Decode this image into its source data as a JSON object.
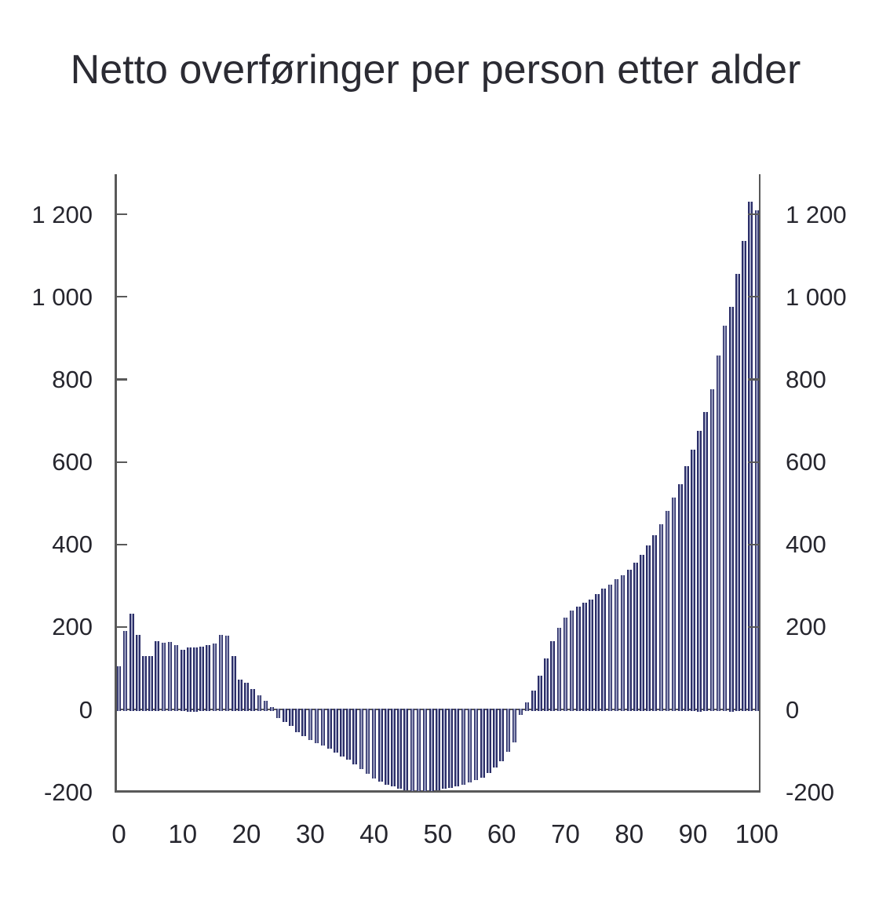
{
  "title": "Netto overføringer per person etter alder",
  "chart_data": {
    "type": "bar",
    "title": "Netto overføringer per person etter alder",
    "xlabel": "",
    "ylabel": "",
    "x": [
      0,
      1,
      2,
      3,
      4,
      5,
      6,
      7,
      8,
      9,
      10,
      11,
      12,
      13,
      14,
      15,
      16,
      17,
      18,
      19,
      20,
      21,
      22,
      23,
      24,
      25,
      26,
      27,
      28,
      29,
      30,
      31,
      32,
      33,
      34,
      35,
      36,
      37,
      38,
      39,
      40,
      41,
      42,
      43,
      44,
      45,
      46,
      47,
      48,
      49,
      50,
      51,
      52,
      53,
      54,
      55,
      56,
      57,
      58,
      59,
      60,
      61,
      62,
      63,
      64,
      65,
      66,
      67,
      68,
      69,
      70,
      71,
      72,
      73,
      74,
      75,
      76,
      77,
      78,
      79,
      80,
      81,
      82,
      83,
      84,
      85,
      86,
      87,
      88,
      89,
      90,
      91,
      92,
      93,
      94,
      95,
      96,
      97,
      98,
      99,
      100
    ],
    "values": [
      105,
      190,
      232,
      180,
      130,
      130,
      165,
      162,
      163,
      155,
      145,
      150,
      150,
      152,
      155,
      160,
      180,
      178,
      130,
      72,
      65,
      50,
      35,
      20,
      5,
      -20,
      -30,
      -40,
      -55,
      -65,
      -75,
      -82,
      -88,
      -95,
      -105,
      -115,
      -122,
      -133,
      -145,
      -155,
      -168,
      -175,
      -182,
      -187,
      -192,
      -195,
      -197,
      -198,
      -198,
      -197,
      -195,
      -193,
      -190,
      -187,
      -182,
      -177,
      -172,
      -166,
      -154,
      -141,
      -125,
      -102,
      -79,
      -14,
      18,
      46,
      82,
      123,
      166,
      198,
      223,
      239,
      250,
      258,
      267,
      280,
      293,
      303,
      315,
      326,
      338,
      356,
      374,
      398,
      422,
      448,
      481,
      514,
      545,
      590,
      630,
      675,
      720,
      776,
      858,
      930,
      975,
      1055,
      1135,
      1230,
      1210
    ],
    "y_ticks": [
      {
        "value": 1200,
        "label": "1 200"
      },
      {
        "value": 1000,
        "label": "1 000"
      },
      {
        "value": 800,
        "label": "800"
      },
      {
        "value": 600,
        "label": "600"
      },
      {
        "value": 400,
        "label": "400"
      },
      {
        "value": 200,
        "label": "200"
      },
      {
        "value": 0,
        "label": "0"
      },
      {
        "value": -200,
        "label": "-200"
      }
    ],
    "x_ticks": [
      {
        "value": 0,
        "label": "0"
      },
      {
        "value": 10,
        "label": "10"
      },
      {
        "value": 20,
        "label": "20"
      },
      {
        "value": 30,
        "label": "30"
      },
      {
        "value": 40,
        "label": "40"
      },
      {
        "value": 50,
        "label": "50"
      },
      {
        "value": 60,
        "label": "60"
      },
      {
        "value": 70,
        "label": "70"
      },
      {
        "value": 80,
        "label": "80"
      },
      {
        "value": 90,
        "label": "90"
      },
      {
        "value": 100,
        "label": "100"
      }
    ],
    "ylim": [
      -200,
      1300
    ],
    "xlim": [
      0,
      100
    ],
    "grid": false,
    "legend": "none",
    "axes_shown": [
      "left",
      "right",
      "bottom"
    ],
    "colors": {
      "bar_dark": "#2b2e68",
      "bar_light": "#a6aac8",
      "axis": "#595959",
      "text": "#26262e"
    }
  }
}
